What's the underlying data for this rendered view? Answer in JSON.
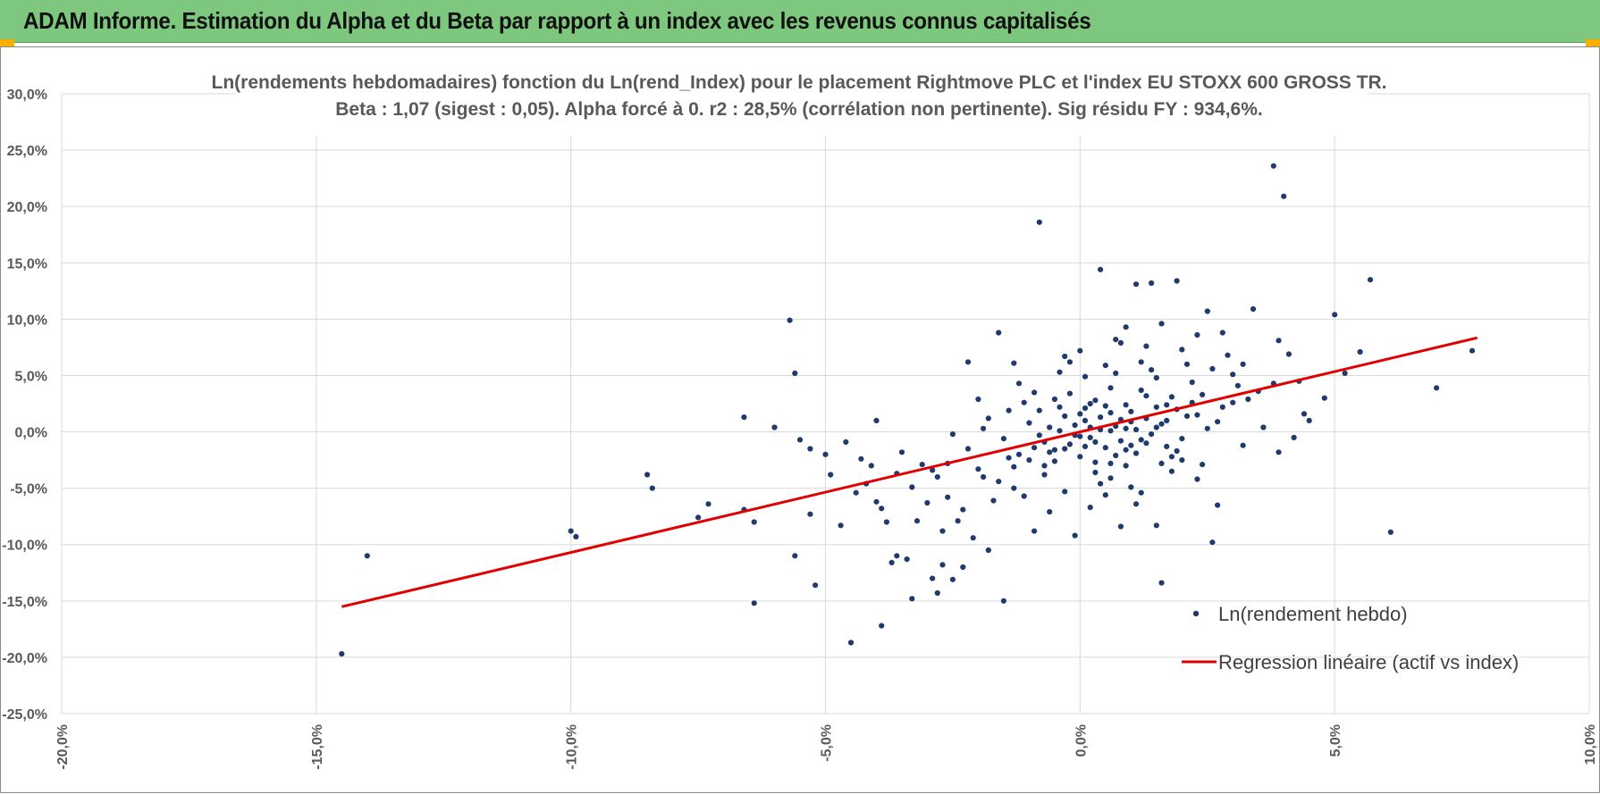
{
  "banner": {
    "title": "ADAM Informe. Estimation du Alpha et du Beta par rapport à un index avec les revenus connus capitalisés"
  },
  "colors": {
    "banner": "#7ec77e",
    "points": "#1f3b6e",
    "regression": "#e00000",
    "grid": "#d9d9d9",
    "accent": "#f5b000"
  },
  "chart_data": {
    "type": "scatter",
    "title": "Ln(rendements hebdomadaires) fonction du Ln(rend_Index) pour le placement Rightmove PLC et l'index EU STOXX 600 GROSS TR.",
    "subtitle": "Beta : 1,07 (sigest : 0,05).  Alpha forcé à 0. r2 : 28,5% (corrélation non pertinente). Sig résidu FY : 934,6%.",
    "xlim": [
      -20,
      10
    ],
    "ylim": [
      -25,
      30
    ],
    "x_ticks": [
      -20,
      -15,
      -10,
      -5,
      0,
      5,
      10
    ],
    "x_tick_labels": [
      "-20,0%",
      "-15,0%",
      "-10,0%",
      "-5,0%",
      "0,0%",
      "5,0%",
      "10,0%"
    ],
    "y_ticks": [
      30,
      25,
      20,
      15,
      10,
      5,
      0,
      -5,
      -10,
      -15,
      -20,
      -25
    ],
    "y_tick_labels": [
      "30,0%",
      "25,0%",
      "20,0%",
      "15,0%",
      "10,0%",
      "5,0%",
      "0,0%",
      "-5,0%",
      "-10,0%",
      "-15,0%",
      "-20,0%",
      "-25,0%"
    ],
    "legend": [
      {
        "name": "Ln(rendement hebdo)",
        "kind": "marker"
      },
      {
        "name": "Regression linéaire (actif vs index)",
        "kind": "line"
      }
    ],
    "regression": {
      "beta": 1.07,
      "x_start": -14.5,
      "x_end": 7.8
    },
    "series": [
      {
        "name": "Ln(rendement hebdo)",
        "points": [
          [
            -14.5,
            -19.7
          ],
          [
            -14.0,
            -11.0
          ],
          [
            -10.0,
            -8.8
          ],
          [
            -9.9,
            -9.3
          ],
          [
            -8.5,
            -3.8
          ],
          [
            -8.4,
            -5.0
          ],
          [
            -7.5,
            -7.6
          ],
          [
            -7.3,
            -6.4
          ],
          [
            -6.6,
            -6.9
          ],
          [
            -6.6,
            1.3
          ],
          [
            -6.4,
            -8.0
          ],
          [
            -6.4,
            -15.2
          ],
          [
            -6.0,
            0.4
          ],
          [
            -5.7,
            9.9
          ],
          [
            -5.6,
            5.2
          ],
          [
            -5.6,
            -11.0
          ],
          [
            -5.5,
            -0.7
          ],
          [
            -5.3,
            -1.5
          ],
          [
            -5.3,
            -7.3
          ],
          [
            -5.2,
            -13.6
          ],
          [
            -5.0,
            -2.0
          ],
          [
            -4.9,
            -3.8
          ],
          [
            -4.7,
            -8.3
          ],
          [
            -4.6,
            -0.9
          ],
          [
            -4.5,
            -18.7
          ],
          [
            -4.4,
            -5.4
          ],
          [
            -4.2,
            -4.6
          ],
          [
            -4.0,
            1.0
          ],
          [
            -4.0,
            -6.2
          ],
          [
            -3.9,
            -17.2
          ],
          [
            -3.8,
            -8.0
          ],
          [
            -3.7,
            -11.6
          ],
          [
            -3.6,
            -11.0
          ],
          [
            -3.5,
            -1.8
          ],
          [
            -3.4,
            -11.3
          ],
          [
            -3.3,
            -14.8
          ],
          [
            -3.2,
            -7.9
          ],
          [
            -3.0,
            -6.3
          ],
          [
            -2.9,
            -13.0
          ],
          [
            -2.8,
            -14.3
          ],
          [
            -2.7,
            -11.8
          ],
          [
            -2.6,
            -2.8
          ],
          [
            -2.5,
            -13.1
          ],
          [
            -2.4,
            -7.9
          ],
          [
            -2.3,
            -12.0
          ],
          [
            -2.2,
            6.2
          ],
          [
            -2.1,
            -9.4
          ],
          [
            -1.9,
            -4.0
          ],
          [
            -1.8,
            -10.5
          ],
          [
            -1.6,
            8.8
          ],
          [
            -1.5,
            -15.0
          ],
          [
            -1.3,
            6.1
          ],
          [
            -1.2,
            -2.0
          ],
          [
            -1.1,
            -5.7
          ],
          [
            -0.9,
            -8.8
          ],
          [
            -0.8,
            18.6
          ],
          [
            -0.7,
            -3.0
          ],
          [
            -0.6,
            -7.1
          ],
          [
            -0.5,
            -1.6
          ],
          [
            -0.4,
            2.2
          ],
          [
            -0.3,
            -5.3
          ],
          [
            -0.2,
            6.2
          ],
          [
            -0.1,
            -9.2
          ],
          [
            0.0,
            -0.4
          ],
          [
            0.1,
            2.1
          ],
          [
            0.2,
            -6.7
          ],
          [
            0.4,
            14.4
          ],
          [
            0.3,
            -2.7
          ],
          [
            0.5,
            5.9
          ],
          [
            0.6,
            -4.1
          ],
          [
            0.8,
            -8.4
          ],
          [
            0.9,
            9.3
          ],
          [
            1.0,
            -1.2
          ],
          [
            1.1,
            13.1
          ],
          [
            1.2,
            -5.4
          ],
          [
            1.3,
            3.2
          ],
          [
            1.4,
            13.2
          ],
          [
            1.5,
            -8.3
          ],
          [
            1.6,
            -13.4
          ],
          [
            1.7,
            2.4
          ],
          [
            1.8,
            -3.5
          ],
          [
            1.9,
            13.4
          ],
          [
            2.0,
            -2.5
          ],
          [
            2.1,
            6.0
          ],
          [
            2.3,
            -4.2
          ],
          [
            2.5,
            10.7
          ],
          [
            2.6,
            -9.8
          ],
          [
            2.7,
            -6.5
          ],
          [
            2.8,
            8.8
          ],
          [
            3.0,
            2.6
          ],
          [
            3.2,
            -1.2
          ],
          [
            3.4,
            10.9
          ],
          [
            3.6,
            0.4
          ],
          [
            3.8,
            23.6
          ],
          [
            3.9,
            -1.8
          ],
          [
            3.9,
            8.1
          ],
          [
            4.0,
            20.9
          ],
          [
            4.2,
            -0.5
          ],
          [
            4.3,
            4.5
          ],
          [
            4.5,
            1.0
          ],
          [
            4.8,
            3.0
          ],
          [
            5.0,
            10.4
          ],
          [
            5.2,
            5.2
          ],
          [
            5.5,
            7.1
          ],
          [
            5.7,
            13.5
          ],
          [
            6.1,
            -8.9
          ],
          [
            7.0,
            3.9
          ],
          [
            7.7,
            7.2
          ],
          [
            -1.4,
            -2.3
          ],
          [
            -1.0,
            0.8
          ],
          [
            -0.9,
            -1.4
          ],
          [
            -0.8,
            1.9
          ],
          [
            -0.7,
            -0.9
          ],
          [
            -0.6,
            0.4
          ],
          [
            -0.5,
            -2.6
          ],
          [
            -0.4,
            0.1
          ],
          [
            -0.3,
            1.4
          ],
          [
            -0.2,
            -1.1
          ],
          [
            -0.1,
            0.6
          ],
          [
            0.0,
            -2.2
          ],
          [
            0.1,
            1.0
          ],
          [
            0.2,
            -0.5
          ],
          [
            0.3,
            2.8
          ],
          [
            0.4,
            0.2
          ],
          [
            0.5,
            -1.4
          ],
          [
            0.6,
            1.7
          ],
          [
            0.7,
            0.5
          ],
          [
            0.8,
            -0.8
          ],
          [
            0.9,
            2.4
          ],
          [
            1.0,
            0.9
          ],
          [
            1.1,
            -1.9
          ],
          [
            1.2,
            3.7
          ],
          [
            1.3,
            1.2
          ],
          [
            1.4,
            -0.2
          ],
          [
            1.5,
            4.8
          ],
          [
            1.6,
            0.7
          ],
          [
            1.7,
            -1.3
          ],
          [
            1.8,
            3.1
          ],
          [
            1.9,
            2.0
          ],
          [
            2.0,
            -0.6
          ],
          [
            2.2,
            4.4
          ],
          [
            2.3,
            1.5
          ],
          [
            2.4,
            3.3
          ],
          [
            2.6,
            5.6
          ],
          [
            2.7,
            0.9
          ],
          [
            2.9,
            6.8
          ],
          [
            3.1,
            4.1
          ],
          [
            3.3,
            2.9
          ],
          [
            -2.0,
            -3.3
          ],
          [
            -1.8,
            1.2
          ],
          [
            -1.6,
            -4.4
          ],
          [
            -1.5,
            -0.6
          ],
          [
            -1.3,
            -3.1
          ],
          [
            -1.1,
            2.6
          ],
          [
            -2.5,
            -0.2
          ],
          [
            -2.8,
            -4.0
          ],
          [
            -3.1,
            -2.9
          ],
          [
            -3.3,
            -4.9
          ],
          [
            -3.6,
            -3.7
          ],
          [
            -2.2,
            -1.5
          ],
          [
            -2.6,
            -5.8
          ],
          [
            -1.9,
            0.3
          ],
          [
            -1.7,
            -6.1
          ],
          [
            -1.2,
            4.3
          ],
          [
            0.3,
            -3.6
          ],
          [
            0.6,
            3.9
          ],
          [
            0.9,
            -3.0
          ],
          [
            1.2,
            6.2
          ],
          [
            1.5,
            2.2
          ],
          [
            1.8,
            -2.2
          ],
          [
            2.1,
            1.4
          ],
          [
            -0.2,
            3.4
          ],
          [
            0.1,
            4.9
          ],
          [
            0.4,
            -4.6
          ],
          [
            0.7,
            5.2
          ],
          [
            1.0,
            -4.9
          ],
          [
            1.3,
            7.6
          ],
          [
            1.6,
            -2.8
          ],
          [
            0.0,
            7.2
          ],
          [
            -0.4,
            5.3
          ],
          [
            0.8,
            7.9
          ],
          [
            1.4,
            5.5
          ],
          [
            2.0,
            7.3
          ],
          [
            -0.9,
            3.5
          ],
          [
            -1.3,
            -5.0
          ],
          [
            0.5,
            -5.6
          ],
          [
            1.1,
            -6.4
          ],
          [
            2.4,
            -2.9
          ],
          [
            0.2,
            0.4
          ],
          [
            0.3,
            -0.9
          ],
          [
            0.6,
            0.1
          ],
          [
            0.7,
            -2.1
          ],
          [
            0.9,
            0.3
          ],
          [
            1.0,
            1.8
          ],
          [
            1.1,
            0.2
          ],
          [
            1.2,
            -0.7
          ],
          [
            -0.1,
            -0.3
          ],
          [
            -0.3,
            -1.5
          ],
          [
            0.1,
            -1.3
          ],
          [
            0.4,
            1.3
          ],
          [
            0.5,
            2.3
          ],
          [
            0.8,
            1.1
          ],
          [
            0.2,
            2.5
          ],
          [
            -0.6,
            -1.8
          ],
          [
            -0.8,
            -0.3
          ],
          [
            -1.0,
            -2.5
          ],
          [
            0.0,
            1.6
          ],
          [
            0.6,
            -2.8
          ],
          [
            0.9,
            -1.6
          ],
          [
            1.3,
            -1.0
          ],
          [
            1.5,
            0.4
          ],
          [
            1.7,
            1.0
          ],
          [
            1.9,
            -1.7
          ],
          [
            2.2,
            2.6
          ],
          [
            2.5,
            0.3
          ],
          [
            2.8,
            2.2
          ],
          [
            3.0,
            5.1
          ],
          [
            3.5,
            3.6
          ],
          [
            -0.5,
            2.9
          ],
          [
            -0.7,
            -3.8
          ],
          [
            -2.3,
            -6.9
          ],
          [
            -2.0,
            2.9
          ],
          [
            -1.4,
            1.9
          ],
          [
            -2.7,
            -8.8
          ],
          [
            -4.1,
            -3.0
          ],
          [
            -3.9,
            -6.8
          ],
          [
            -4.3,
            -2.4
          ],
          [
            -2.9,
            -3.4
          ],
          [
            1.6,
            9.6
          ],
          [
            2.3,
            8.6
          ],
          [
            0.7,
            8.2
          ],
          [
            -0.3,
            6.7
          ],
          [
            3.2,
            6.0
          ],
          [
            3.8,
            4.3
          ],
          [
            4.1,
            6.9
          ],
          [
            4.4,
            1.6
          ]
        ]
      }
    ]
  }
}
